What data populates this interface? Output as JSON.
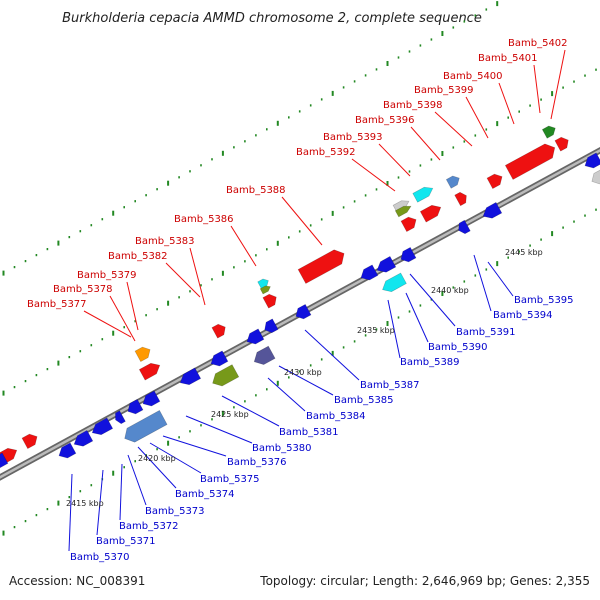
{
  "title": "Burkholderia cepacia AMMD chromosome 2, complete sequence",
  "footer": {
    "accession_label": "Accession:",
    "accession": "NC_008391",
    "topology_label": "Topology:",
    "topology": "circular",
    "length_label": "Length:",
    "length": "2,646,969 bp",
    "genes_label": "Genes:",
    "genes": "2,355"
  },
  "colors": {
    "forward_label": "#cc0000",
    "reverse_label": "#0000cc",
    "red": "#ee1111",
    "blue": "#1111dd",
    "olive": "#77991a",
    "steel": "#5588cc",
    "cyan": "#11e6ee",
    "orange": "#ff9900",
    "purple": "#555599",
    "green": "#228822",
    "grey": "#cccccc",
    "tick": "#228822",
    "backbone": "#888888"
  },
  "scale": {
    "tick_labels": [
      "2415 kbp",
      "2420 kbp",
      "2425 kbp",
      "2430 kbp",
      "2435 kbp",
      "2440 kbp",
      "2445 kbp"
    ]
  },
  "genes_forward": [
    "Bamb_5377",
    "Bamb_5378",
    "Bamb_5379",
    "Bamb_5382",
    "Bamb_5383",
    "Bamb_5386",
    "Bamb_5388",
    "Bamb_5392",
    "Bamb_5393",
    "Bamb_5396",
    "Bamb_5398",
    "Bamb_5399",
    "Bamb_5400",
    "Bamb_5401",
    "Bamb_5402"
  ],
  "genes_reverse": [
    "Bamb_5370",
    "Bamb_5371",
    "Bamb_5372",
    "Bamb_5373",
    "Bamb_5374",
    "Bamb_5375",
    "Bamb_5376",
    "Bamb_5380",
    "Bamb_5381",
    "Bamb_5384",
    "Bamb_5385",
    "Bamb_5387",
    "Bamb_5389",
    "Bamb_5390",
    "Bamb_5391",
    "Bamb_5394",
    "Bamb_5395"
  ]
}
